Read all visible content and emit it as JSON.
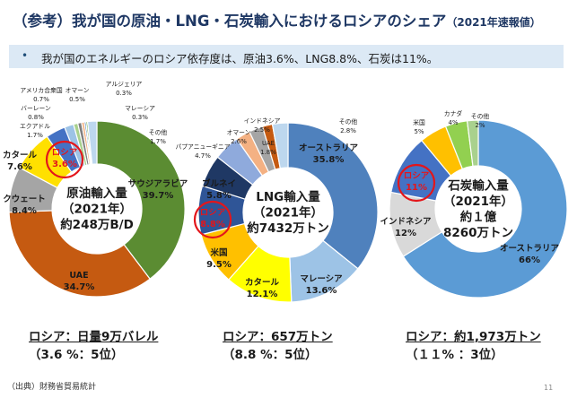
{
  "title": {
    "main": "（参考）我が国の原油・LNG・石炭輸入におけるロシアのシェア",
    "sub": "（2021年速報値）"
  },
  "bullet": "我が国のエネルギーのロシア依存度は、原油3.6%、LNG8.8%、石炭は11%。",
  "chart_data": [
    {
      "type": "pie",
      "center_label": [
        "原油輸入量",
        "（2021年）",
        "約248万B/D"
      ],
      "slices": [
        {
          "name": "サウジアラビア",
          "value": 39.7,
          "label": "39.7%",
          "color": "#5b8c32"
        },
        {
          "name": "UAE",
          "value": 34.7,
          "label": "34.7%",
          "color": "#c55a11"
        },
        {
          "name": "クウェート",
          "value": 8.4,
          "label": "8.4%",
          "color": "#a5a5a5"
        },
        {
          "name": "カタール",
          "value": 7.6,
          "label": "7.6%",
          "color": "#ffe000"
        },
        {
          "name": "ロシア",
          "value": 3.6,
          "label": "3.6%",
          "color": "#4472c4",
          "highlight": true
        },
        {
          "name": "エクアドル",
          "value": 1.7,
          "label": "1.7%",
          "color": "#9dc3e6"
        },
        {
          "name": "バーレーン",
          "value": 0.8,
          "label": "0.8%",
          "color": "#a9d18e"
        },
        {
          "name": "アメリカ合衆国",
          "value": 0.7,
          "label": "0.7%",
          "color": "#7f7f7f"
        },
        {
          "name": "オマーン",
          "value": 0.5,
          "label": "0.5%",
          "color": "#f4b183"
        },
        {
          "name": "アルジェリア",
          "value": 0.3,
          "label": "0.3%",
          "color": "#2e75b6"
        },
        {
          "name": "マレーシア",
          "value": 0.3,
          "label": "0.3%",
          "color": "#70ad47"
        },
        {
          "name": "その他",
          "value": 1.7,
          "label": "1.7%",
          "color": "#bdd7ee"
        }
      ],
      "summary": [
        "ロシア：日量9万バレル",
        "（3.6 %：5位）"
      ]
    },
    {
      "type": "pie",
      "center_label": [
        "LNG輸入量",
        "（2021年）",
        "約7432万トン"
      ],
      "slices": [
        {
          "name": "オーストラリア",
          "value": 35.8,
          "label": "35.8%",
          "color": "#4f81bd"
        },
        {
          "name": "マレーシア",
          "value": 13.6,
          "label": "13.6%",
          "color": "#9dc3e6"
        },
        {
          "name": "カタール",
          "value": 12.1,
          "label": "12.1%",
          "color": "#ffff00"
        },
        {
          "name": "米国",
          "value": 9.5,
          "label": "9.5%",
          "color": "#ffc000"
        },
        {
          "name": "ロシア",
          "value": 8.8,
          "label": "8.8%",
          "color": "#2f5597",
          "highlight": true
        },
        {
          "name": "ブルネイ",
          "value": 5.8,
          "label": "5.8%",
          "color": "#1f3864"
        },
        {
          "name": "パプアニューギニア",
          "value": 4.7,
          "label": "4.7%",
          "color": "#8faadc"
        },
        {
          "name": "オマーン",
          "value": 2.6,
          "label": "2.6%",
          "color": "#f4b183"
        },
        {
          "name": "インドネシア",
          "value": 2.5,
          "label": "2.5%",
          "color": "#a5a5a5"
        },
        {
          "name": "UAE",
          "value": 1.8,
          "label": "1.8%",
          "color": "#c55a11"
        },
        {
          "name": "その他",
          "value": 2.8,
          "label": "2.8%",
          "color": "#bdd7ee"
        }
      ],
      "summary": [
        "ロシア：657万トン",
        "（8.8 %：5位）"
      ]
    },
    {
      "type": "pie",
      "center_label": [
        "石炭輸入量",
        "（2021年）",
        "約１億",
        "8260万トン"
      ],
      "slices": [
        {
          "name": "オーストラリア",
          "value": 66,
          "label": "66%",
          "color": "#5b9bd5"
        },
        {
          "name": "インドネシア",
          "value": 12,
          "label": "12%",
          "color": "#d9d9d9"
        },
        {
          "name": "ロシア",
          "value": 11,
          "label": "11%",
          "color": "#4472c4",
          "highlight": true
        },
        {
          "name": "米国",
          "value": 5,
          "label": "5%",
          "color": "#ffc000"
        },
        {
          "name": "カナダ",
          "value": 4,
          "label": "4%",
          "color": "#92d050"
        },
        {
          "name": "その他",
          "value": 2,
          "label": "2%",
          "color": "#a9d18e"
        }
      ],
      "summary": [
        "ロシア：約1,973万トン",
        "（１１%  ：3位）"
      ]
    }
  ],
  "source": "（出典）財務省貿易統計",
  "page_number": "11"
}
